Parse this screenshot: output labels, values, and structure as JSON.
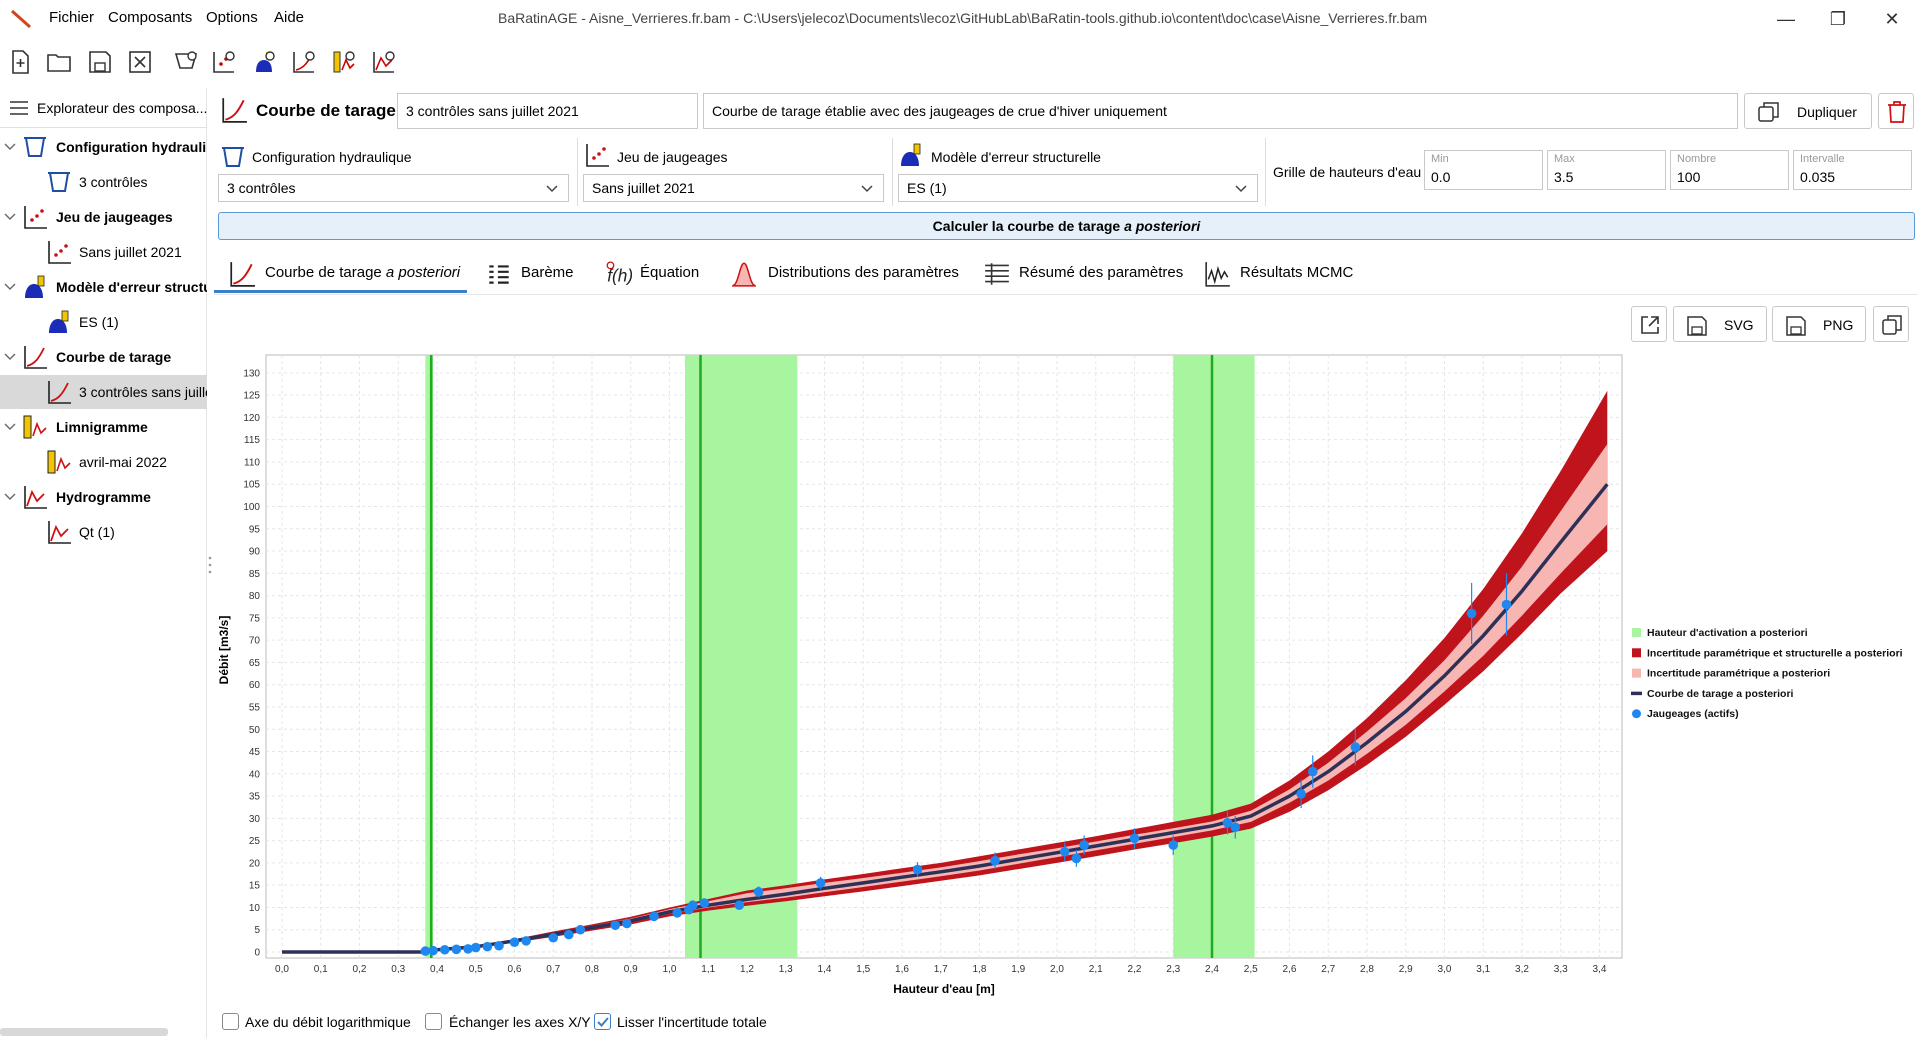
{
  "window": {
    "title": "BaRatinAGE - Aisne_Verrieres.fr.bam - C:\\Users\\jelecoz\\Documents\\lecoz\\GitHubLab\\BaRatin-tools.github.io\\content\\doc\\case\\Aisne_Verrieres.fr.bam",
    "menu": [
      "Fichier",
      "Composants",
      "Options",
      "Aide"
    ]
  },
  "sidebar": {
    "header": "Explorateur des composa...",
    "groups": [
      {
        "label": "Configuration hydrauli",
        "child": "3 contrôles"
      },
      {
        "label": "Jeu de jaugeages",
        "child": "Sans juillet 2021"
      },
      {
        "label": "Modèle d'erreur structu",
        "child": "ES (1)"
      },
      {
        "label": "Courbe de tarage",
        "child": "3 contrôles sans juille"
      },
      {
        "label": "Limnigramme",
        "child": "avril-mai 2022"
      },
      {
        "label": "Hydrogramme",
        "child": "Qt (1)"
      }
    ]
  },
  "header": {
    "title": "Courbe de tarage",
    "name_value": "3 contrôles sans juillet 2021",
    "description_value": "Courbe de tarage établie avec des jaugeages de crue d'hiver uniquement",
    "duplicate_label": "Dupliquer"
  },
  "selectors": {
    "config_label": "Configuration hydraulique",
    "config_value": "3 contrôles",
    "gaugings_label": "Jeu de jaugeages",
    "gaugings_value": "Sans juillet 2021",
    "error_label": "Modèle d'erreur structurelle",
    "error_value": "ES (1)",
    "grid_label": "Grille de hauteurs d'eau",
    "grid": [
      {
        "label": "Min",
        "value": "0.0"
      },
      {
        "label": "Max",
        "value": "3.5"
      },
      {
        "label": "Nombre",
        "value": "100"
      },
      {
        "label": "Intervalle",
        "value": "0.035"
      }
    ]
  },
  "calc_button": {
    "text": "Calculer la courbe de tarage ",
    "italic": "a posteriori"
  },
  "tabs": [
    {
      "label": "Courbe de tarage ",
      "italic": "a posteriori"
    },
    {
      "label": "Barème"
    },
    {
      "label": "Équation"
    },
    {
      "label": "Distributions des paramètres"
    },
    {
      "label": "Résumé des paramètres"
    },
    {
      "label": "Résultats MCMC"
    }
  ],
  "plot_buttons": {
    "svg": "SVG",
    "png": "PNG"
  },
  "options": {
    "log_label": "Axe du débit logarithmique",
    "swap_label": "Échanger les axes X/Y",
    "smooth_label": "Lisser l'incertitude totale",
    "log_checked": false,
    "swap_checked": false,
    "smooth_checked": true
  },
  "colors": {
    "activation": "#a8f5a0",
    "activation_line": "#1faa1f",
    "total_uncertainty": "#c0141c",
    "param_uncertainty": "#f7b6b2",
    "curve": "#2e3157",
    "gaugings": "#1e88f0",
    "accent": "#3a7fc8"
  },
  "chart_data": {
    "type": "line",
    "xlabel": "Hauteur d'eau [m]",
    "ylabel": "Débit [m3/s]",
    "xlim": [
      0,
      3.45
    ],
    "ylim": [
      0,
      132
    ],
    "xticks": [
      "0,0",
      "0,1",
      "0,2",
      "0,3",
      "0,4",
      "0,5",
      "0,6",
      "0,7",
      "0,8",
      "0,9",
      "1,0",
      "1,1",
      "1,2",
      "1,3",
      "1,4",
      "1,5",
      "1,6",
      "1,7",
      "1,8",
      "1,9",
      "2,0",
      "2,1",
      "2,2",
      "2,3",
      "2,4",
      "2,5",
      "2,6",
      "2,7",
      "2,8",
      "2,9",
      "3,0",
      "3,1",
      "3,2",
      "3,3",
      "3,4"
    ],
    "yticks": [
      "0",
      "5",
      "10",
      "15",
      "20",
      "25",
      "30",
      "35",
      "40",
      "45",
      "50",
      "55",
      "60",
      "65",
      "70",
      "75",
      "80",
      "85",
      "90",
      "95",
      "100",
      "105",
      "110",
      "115",
      "120",
      "125",
      "130"
    ],
    "legend": [
      "Hauteur d'activation a posteriori",
      "Incertitude paramétrique et structurelle a posteriori",
      "Incertitude paramétrique a posteriori",
      "Courbe de tarage a posteriori",
      "Jaugeages (actifs)"
    ],
    "legend_position": "right",
    "grid": true,
    "activation_bands": [
      {
        "min": 0.37,
        "max": 0.39,
        "value": 0.385
      },
      {
        "min": 1.04,
        "max": 1.33,
        "value": 1.08
      },
      {
        "min": 2.3,
        "max": 2.51,
        "value": 2.4
      }
    ],
    "rating_curve": {
      "h": [
        0.0,
        0.3,
        0.36,
        0.4,
        0.5,
        0.6,
        0.7,
        0.8,
        0.9,
        1.0,
        1.1,
        1.2,
        1.3,
        1.4,
        1.5,
        1.6,
        1.7,
        1.8,
        1.9,
        2.0,
        2.1,
        2.2,
        2.3,
        2.4,
        2.5,
        2.6,
        2.7,
        2.8,
        2.9,
        3.0,
        3.1,
        3.2,
        3.3,
        3.42
      ],
      "q": [
        0,
        0,
        0,
        0.5,
        1.2,
        2.5,
        4,
        5.5,
        7,
        9,
        10.5,
        11.8,
        13,
        14.3,
        15.5,
        16.8,
        18,
        19.3,
        20.8,
        22.3,
        23.8,
        25.3,
        26.8,
        28.3,
        30.5,
        35,
        40.5,
        47,
        54,
        62,
        71,
        81,
        92,
        105
      ],
      "param_lo": [
        0,
        0,
        0,
        0.4,
        1.1,
        2.3,
        3.7,
        5.2,
        6.7,
        8.6,
        10,
        11.2,
        12.2,
        13.4,
        14.6,
        15.8,
        17,
        18.3,
        19.8,
        21.3,
        22.8,
        24.3,
        25.8,
        27.3,
        29.2,
        33.5,
        38.5,
        44.5,
        51,
        58.5,
        66.5,
        75.5,
        85,
        96
      ],
      "param_hi": [
        0,
        0,
        0,
        0.6,
        1.3,
        2.7,
        4.3,
        5.9,
        7.5,
        9.6,
        11.4,
        13.2,
        14.3,
        15.5,
        16.6,
        17.8,
        19,
        20.4,
        21.9,
        23.3,
        24.8,
        26.3,
        27.8,
        29.3,
        31.7,
        36.5,
        42.5,
        49.5,
        57,
        65.5,
        75.5,
        86.5,
        99,
        114
      ],
      "total_lo": [
        0,
        0,
        0,
        0.3,
        1,
        2.1,
        3.4,
        4.8,
        6.2,
        8,
        9.3,
        10.4,
        11.4,
        12.5,
        13.6,
        14.8,
        16,
        17.2,
        18.6,
        20,
        21.5,
        23,
        24.4,
        25.9,
        27.7,
        31.5,
        36.3,
        42,
        48.3,
        55.5,
        63,
        71.5,
        80.5,
        90
      ],
      "total_hi": [
        0,
        0,
        0,
        0.7,
        1.4,
        2.9,
        4.6,
        6.2,
        7.9,
        10,
        11.9,
        13.8,
        15,
        16.3,
        17.5,
        18.8,
        20,
        21.5,
        23,
        24.5,
        26,
        27.6,
        29.2,
        30.8,
        33.3,
        38.5,
        45,
        52.5,
        61,
        70.5,
        81.5,
        94,
        108,
        126
      ]
    },
    "gaugings": [
      {
        "h": 0.37,
        "q": 0.2
      },
      {
        "h": 0.39,
        "q": 0.3
      },
      {
        "h": 0.42,
        "q": 0.5
      },
      {
        "h": 0.45,
        "q": 0.6
      },
      {
        "h": 0.48,
        "q": 0.7
      },
      {
        "h": 0.5,
        "q": 1.0
      },
      {
        "h": 0.53,
        "q": 1.2
      },
      {
        "h": 0.56,
        "q": 1.4
      },
      {
        "h": 0.6,
        "q": 2.2
      },
      {
        "h": 0.63,
        "q": 2.5
      },
      {
        "h": 0.7,
        "q": 3.2
      },
      {
        "h": 0.74,
        "q": 3.9
      },
      {
        "h": 0.77,
        "q": 5.0
      },
      {
        "h": 0.86,
        "q": 6.0
      },
      {
        "h": 0.89,
        "q": 6.4
      },
      {
        "h": 0.96,
        "q": 8.0
      },
      {
        "h": 1.02,
        "q": 8.8
      },
      {
        "h": 1.05,
        "q": 9.5
      },
      {
        "h": 1.06,
        "q": 10.5
      },
      {
        "h": 1.09,
        "q": 11.0
      },
      {
        "h": 1.18,
        "q": 10.5
      },
      {
        "h": 1.23,
        "q": 13.5
      },
      {
        "h": 1.39,
        "q": 15.5
      },
      {
        "h": 1.64,
        "q": 18.5
      },
      {
        "h": 1.84,
        "q": 20.5
      },
      {
        "h": 2.02,
        "q": 22.5
      },
      {
        "h": 2.05,
        "q": 21.0
      },
      {
        "h": 2.07,
        "q": 24.0
      },
      {
        "h": 2.2,
        "q": 25.5
      },
      {
        "h": 2.3,
        "q": 24.0
      },
      {
        "h": 2.44,
        "q": 29.0
      },
      {
        "h": 2.46,
        "q": 28.0
      },
      {
        "h": 2.63,
        "q": 35.5
      },
      {
        "h": 2.66,
        "q": 40.5
      },
      {
        "h": 2.77,
        "q": 46.0
      },
      {
        "h": 3.07,
        "q": 76.0
      },
      {
        "h": 3.16,
        "q": 78.0
      }
    ]
  }
}
